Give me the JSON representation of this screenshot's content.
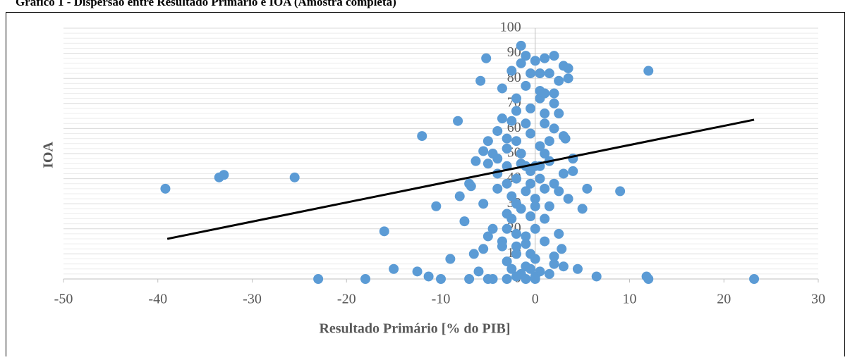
{
  "chart_data": {
    "type": "scatter",
    "title": "Gráfico 1 - Dispersão entre Resultado Primário e IOA (Amostra completa)",
    "xlabel": "Resultado Primário [% do PIB]",
    "ylabel": "IOA",
    "color": "#5b9bd5",
    "xlim": [
      -50,
      30
    ],
    "xticks": [
      -50,
      -40,
      -30,
      -20,
      -10,
      0,
      10,
      20,
      30
    ],
    "ylim": [
      0,
      100
    ],
    "yticks": [
      0,
      10,
      20,
      30,
      40,
      50,
      60,
      70,
      80,
      90,
      100
    ],
    "yminorticks": [
      2,
      4,
      6,
      8,
      12,
      14,
      16,
      18,
      22,
      24,
      26,
      28,
      32,
      34,
      36,
      38,
      42,
      44,
      46,
      48,
      52,
      54,
      56,
      58,
      62,
      64,
      66,
      68,
      72,
      74,
      76,
      78,
      82,
      84,
      86,
      88,
      92,
      94,
      96,
      98
    ],
    "grid": true,
    "trendline": {
      "x": [
        -39,
        23.2
      ],
      "y": [
        16,
        63.5
      ],
      "color": "#000000"
    },
    "x": [
      -39.2,
      -33.5,
      -33,
      -25.5,
      -23,
      -18,
      -16,
      -15,
      -12.5,
      -12,
      -11.3,
      -10.5,
      -10,
      -9,
      -8.2,
      -8,
      -7.5,
      -7,
      -6.8,
      -7,
      -6.5,
      -6.3,
      -6,
      -5.8,
      -5.5,
      -5.2,
      -5.5,
      -5.5,
      -5,
      -5,
      -4.5,
      -4.5,
      -5,
      -4,
      -3.5,
      -3,
      -2.5,
      -2.5,
      -1.5,
      -1,
      0,
      1,
      2,
      0.5,
      1.5,
      3,
      3.5,
      3.5,
      2.5,
      2,
      12,
      0.5,
      2.5,
      3,
      3.2,
      4,
      4,
      3,
      5.5,
      9,
      5,
      3.5,
      2.5,
      1.5,
      1,
      2.5,
      2.8,
      2,
      2,
      3,
      4.5,
      6.5,
      11.8,
      12,
      23.2,
      1.5,
      0.5,
      0,
      -1,
      -0.5,
      0,
      -0.5,
      -2,
      -1,
      -0.5,
      -2,
      -1.5,
      0,
      -3,
      -4,
      -2.5,
      -1.5,
      -3.5,
      -2,
      -1,
      -3,
      -1.5,
      0.5,
      1,
      1.5,
      -0.5,
      -2.5,
      -3.5,
      1,
      2,
      -1,
      -2,
      -4,
      -3,
      -1,
      0,
      -2,
      -0.5,
      -3,
      -2,
      -1,
      -2,
      0,
      1,
      -0.5,
      0,
      -1,
      -3,
      -2,
      1,
      2,
      -3,
      -1.5,
      0.5,
      2,
      -4,
      -4.5,
      -5,
      -3,
      -2,
      0.5,
      -1,
      1,
      -0.5,
      -1.5,
      0.5,
      1.5,
      -0.5,
      1,
      -2.5,
      0,
      -3.5
    ],
    "values": [
      36,
      40.5,
      41.5,
      40.5,
      0,
      0,
      19,
      4,
      3,
      57,
      1,
      29,
      0,
      8,
      63,
      33,
      23,
      38,
      37,
      0,
      10,
      47,
      3,
      79,
      51,
      88,
      30,
      12,
      55,
      0,
      0,
      20,
      17,
      59,
      76,
      26,
      83,
      4,
      93,
      89,
      87,
      88,
      89,
      82,
      82,
      85,
      84,
      80,
      79,
      74,
      83,
      75,
      66,
      57,
      56,
      48,
      43,
      42,
      36,
      35,
      28,
      32,
      35,
      29,
      24,
      18,
      12,
      9,
      6,
      5,
      4,
      1,
      1,
      0,
      0,
      2,
      3,
      1,
      5,
      10,
      20,
      38,
      55,
      62,
      68,
      72,
      50,
      45,
      45,
      48,
      33,
      28,
      15,
      13,
      17,
      7,
      2,
      45,
      50,
      55,
      58,
      63,
      64,
      62,
      70,
      45,
      40,
      42,
      38,
      35,
      32,
      30,
      25,
      20,
      18,
      14,
      10,
      8,
      15,
      4,
      0,
      0,
      0,
      1,
      66,
      60,
      52,
      46,
      40,
      38,
      36,
      50,
      46,
      56,
      67,
      72,
      77,
      74,
      82,
      86,
      53,
      47,
      43,
      36,
      24,
      29,
      13
    ]
  }
}
